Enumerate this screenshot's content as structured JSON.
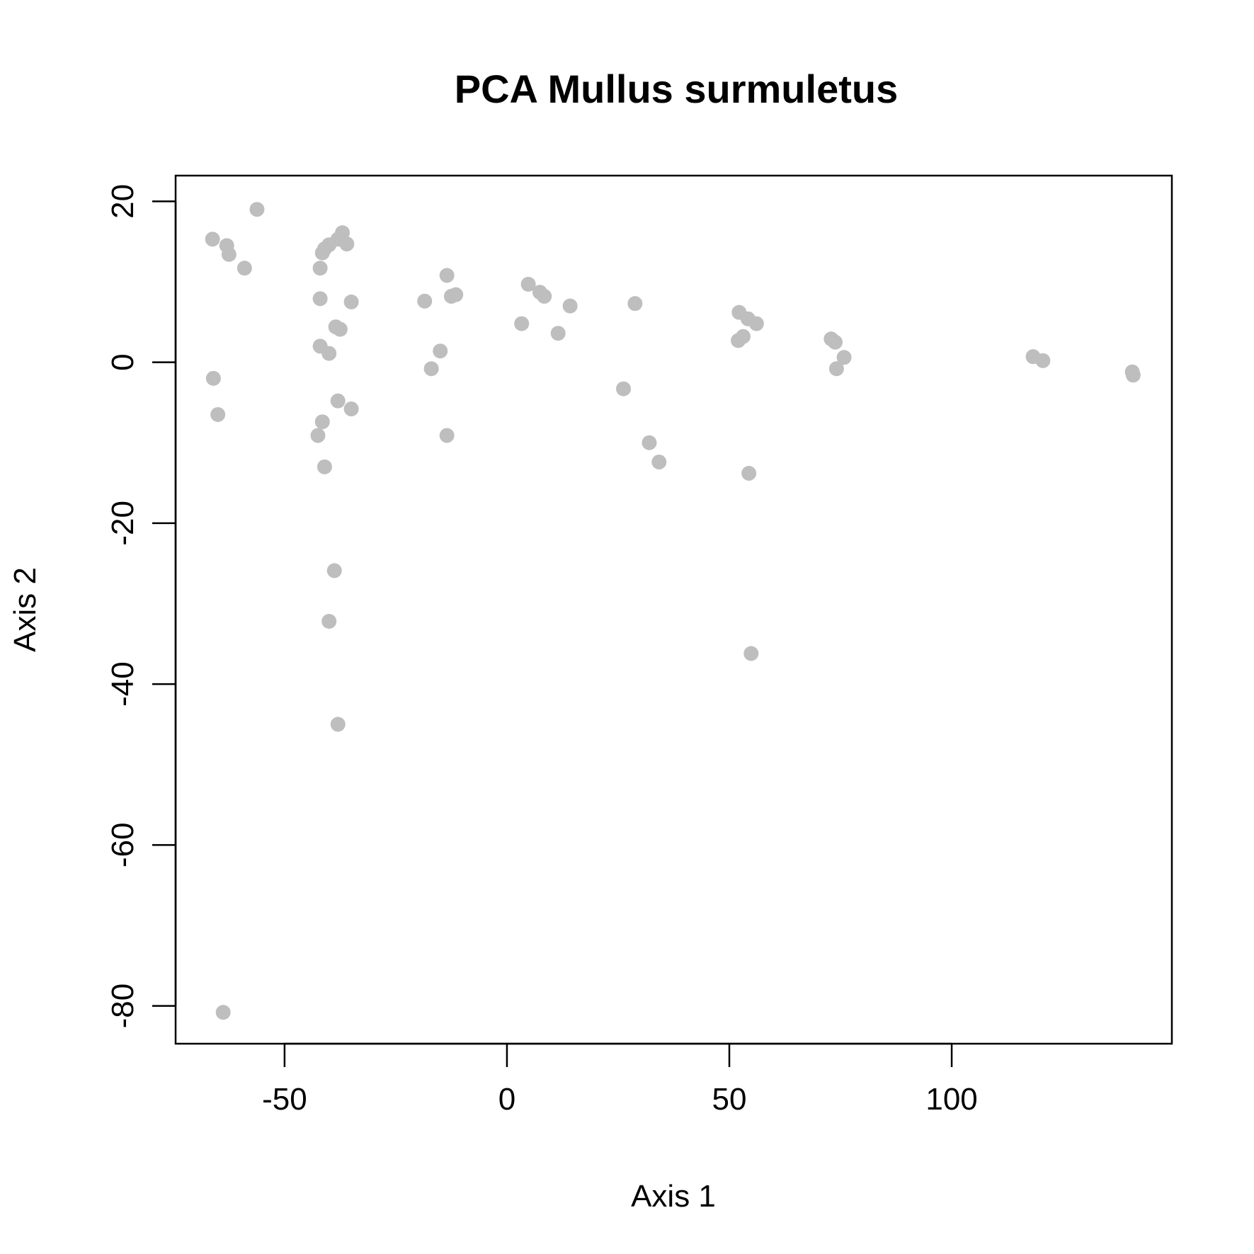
{
  "chart_data": {
    "type": "scatter",
    "title": "PCA Mullus surmuletus",
    "xlabel": "Axis 1",
    "ylabel": "Axis 2",
    "xlim": [
      -74.5,
      149.5
    ],
    "ylim": [
      -84.7,
      23.2
    ],
    "xticks": [
      -50,
      0,
      50,
      100
    ],
    "yticks": [
      20,
      0,
      -20,
      -40,
      -60,
      -80
    ],
    "grid": false,
    "legend": "none",
    "point_color": "#bebebe",
    "series": [
      {
        "x": [
          -66.2,
          -63,
          -62.5,
          -59,
          -56.2,
          -66,
          -65,
          -63.8,
          -42,
          -41.5,
          -41,
          -40,
          -38,
          -37,
          -36,
          -42,
          -35,
          -38.5,
          -37.5,
          -42,
          -40,
          -38,
          -35,
          -41.5,
          -42.5,
          -41,
          -38.8,
          -40,
          -38,
          -18.5,
          -13.5,
          -12.5,
          -11.5,
          -17,
          -15,
          -13.5,
          3.3,
          4.8,
          7.4,
          8.4,
          11.5,
          14.2,
          26.2,
          28.8,
          32,
          34.2,
          52.2,
          54.2,
          56.1,
          52,
          53.1,
          54.4,
          54.9,
          72.9,
          73.8,
          75.8,
          74.1,
          118.3,
          120.5,
          140.6,
          140.8
        ],
        "y": [
          15.3,
          14.5,
          13.4,
          11.7,
          19,
          -2,
          -6.5,
          -80.8,
          11.7,
          13.6,
          14.1,
          14.6,
          15.3,
          16.1,
          14.7,
          7.9,
          7.5,
          4.4,
          4.1,
          2,
          1.1,
          -4.8,
          -5.8,
          -7.4,
          -9.1,
          -13,
          -25.9,
          -32.2,
          -45,
          7.6,
          10.8,
          8.2,
          8.4,
          -0.8,
          1.4,
          -9.1,
          4.8,
          9.7,
          8.7,
          8.2,
          3.6,
          7,
          -3.3,
          7.3,
          -10,
          -12.4,
          6.2,
          5.4,
          4.8,
          2.7,
          3.2,
          -13.8,
          -36.2,
          2.9,
          2.5,
          0.6,
          -0.8,
          0.7,
          0.2,
          -1.2,
          -1.6
        ]
      }
    ]
  }
}
